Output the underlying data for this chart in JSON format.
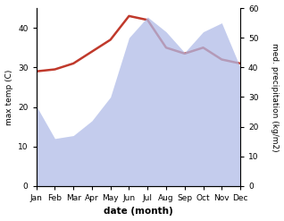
{
  "months": [
    "Jan",
    "Feb",
    "Mar",
    "Apr",
    "May",
    "Jun",
    "Jul",
    "Aug",
    "Sep",
    "Oct",
    "Nov",
    "Dec"
  ],
  "x": [
    0,
    1,
    2,
    3,
    4,
    5,
    6,
    7,
    8,
    9,
    10,
    11
  ],
  "temp": [
    29,
    29.5,
    31,
    34,
    37,
    43,
    42,
    35,
    33.5,
    35,
    32,
    31
  ],
  "precip": [
    27,
    16,
    17,
    22,
    30,
    50,
    57,
    52,
    45,
    52,
    55,
    40
  ],
  "temp_color": "#c0392b",
  "precip_color": "#b0bce8",
  "xlabel": "date (month)",
  "ylabel_left": "max temp (C)",
  "ylabel_right": "med. precipitation (kg/m2)",
  "ylim_left": [
    0,
    45
  ],
  "ylim_right": [
    0,
    60
  ],
  "yticks_left": [
    0,
    10,
    20,
    30,
    40
  ],
  "yticks_right": [
    0,
    10,
    20,
    30,
    40,
    50,
    60
  ],
  "bg_color": "#ffffff",
  "fig_bg": "#ffffff"
}
